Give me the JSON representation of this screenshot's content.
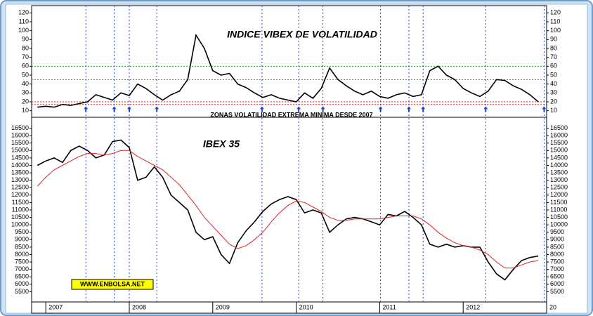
{
  "chart_data": [
    {
      "type": "line",
      "title": "INDICE VIBEX DE VOLATILIDAD",
      "annotation": "ZONAS VOLATILIDAD EXTREMA MINIMA DESDE 2007",
      "x": [
        2006.9,
        2007.0,
        2007.1,
        2007.2,
        2007.3,
        2007.4,
        2007.5,
        2007.6,
        2007.7,
        2007.8,
        2007.9,
        2008.0,
        2008.1,
        2008.2,
        2008.3,
        2008.4,
        2008.5,
        2008.6,
        2008.7,
        2008.8,
        2008.9,
        2009.0,
        2009.1,
        2009.2,
        2009.3,
        2009.4,
        2009.5,
        2009.6,
        2009.7,
        2009.8,
        2009.9,
        2010.0,
        2010.1,
        2010.2,
        2010.3,
        2010.4,
        2010.5,
        2010.6,
        2010.7,
        2010.8,
        2010.9,
        2011.0,
        2011.1,
        2011.2,
        2011.3,
        2011.4,
        2011.5,
        2011.6,
        2011.7,
        2011.8,
        2011.9,
        2012.0,
        2012.1,
        2012.2,
        2012.3,
        2012.4,
        2012.5,
        2012.6,
        2012.7,
        2012.8,
        2012.9
      ],
      "series": [
        {
          "color": "#000000",
          "values": [
            14,
            15,
            14,
            17,
            16,
            18,
            20,
            28,
            25,
            22,
            30,
            27,
            40,
            35,
            28,
            22,
            28,
            32,
            45,
            95,
            80,
            55,
            50,
            52,
            40,
            36,
            30,
            25,
            28,
            24,
            22,
            20,
            30,
            24,
            35,
            58,
            45,
            38,
            32,
            28,
            32,
            26,
            24,
            28,
            30,
            26,
            28,
            55,
            60,
            50,
            45,
            35,
            30,
            26,
            32,
            45,
            44,
            38,
            34,
            28,
            20
          ]
        }
      ],
      "xlim": [
        2006.83,
        2013.0
      ],
      "ylim": [
        5,
        125
      ],
      "yticks": [
        10,
        20,
        30,
        40,
        50,
        60,
        70,
        80,
        90,
        100,
        110,
        120
      ],
      "reference_lines": [
        {
          "value": 60,
          "color": "#22aa22"
        },
        {
          "value": 45,
          "color": "#22aa22"
        },
        {
          "value": 20,
          "color": "#dd2222"
        },
        {
          "value": 17,
          "color": "#dd2222"
        }
      ],
      "signal_dates": [
        2007.48,
        2007.82,
        2008.0,
        2008.33,
        2009.59,
        2010.03,
        2010.32,
        2011.01,
        2011.35,
        2011.52,
        2012.27,
        2012.97
      ],
      "signal_color": "#2244cc"
    },
    {
      "type": "line",
      "title": "IBEX 35",
      "annotation": "WWW.ENBOLSA.NET",
      "x": [
        2006.9,
        2007.0,
        2007.1,
        2007.2,
        2007.3,
        2007.4,
        2007.5,
        2007.6,
        2007.7,
        2007.8,
        2007.9,
        2008.0,
        2008.1,
        2008.2,
        2008.3,
        2008.4,
        2008.5,
        2008.6,
        2008.7,
        2008.8,
        2008.9,
        2009.0,
        2009.1,
        2009.2,
        2009.3,
        2009.4,
        2009.5,
        2009.6,
        2009.7,
        2009.8,
        2009.9,
        2010.0,
        2010.1,
        2010.2,
        2010.3,
        2010.4,
        2010.5,
        2010.6,
        2010.7,
        2010.8,
        2010.9,
        2011.0,
        2011.1,
        2011.2,
        2011.3,
        2011.4,
        2011.5,
        2011.6,
        2011.7,
        2011.8,
        2011.9,
        2012.0,
        2012.1,
        2012.2,
        2012.3,
        2012.4,
        2012.5,
        2012.6,
        2012.7,
        2012.8,
        2012.9
      ],
      "series": [
        {
          "color": "#000000",
          "values": [
            14000,
            14300,
            14500,
            14200,
            15000,
            15300,
            15000,
            14500,
            14700,
            15600,
            15700,
            15200,
            13000,
            13200,
            13900,
            13200,
            12000,
            11500,
            11000,
            9500,
            9000,
            9200,
            8000,
            7400,
            8800,
            9600,
            10200,
            10900,
            11400,
            11700,
            11900,
            11700,
            10800,
            11000,
            10800,
            9500,
            10000,
            10400,
            10500,
            10400,
            10200,
            10000,
            10700,
            10600,
            10900,
            10500,
            10000,
            8700,
            8500,
            8700,
            8500,
            8600,
            8500,
            8500,
            7500,
            6700,
            6300,
            7000,
            7600,
            7800,
            7900
          ]
        },
        {
          "color": "#dd2222",
          "values": [
            12600,
            13200,
            13700,
            14000,
            14300,
            14600,
            14800,
            14800,
            14700,
            14800,
            15000,
            15000,
            14600,
            14300,
            14000,
            13700,
            13200,
            12700,
            12000,
            11300,
            10500,
            9900,
            9300,
            8700,
            8400,
            8600,
            9000,
            9500,
            10200,
            10800,
            11300,
            11600,
            11500,
            11200,
            10900,
            10500,
            10300,
            10300,
            10400,
            10400,
            10400,
            10400,
            10500,
            10600,
            10600,
            10600,
            10400,
            10000,
            9500,
            9100,
            8800,
            8600,
            8500,
            8300,
            8000,
            7500,
            7100,
            7100,
            7300,
            7500,
            7600
          ]
        }
      ],
      "xlim": [
        2006.83,
        2013.0
      ],
      "ylim": [
        5000,
        17000
      ],
      "yticks": [
        5500,
        6000,
        6500,
        7000,
        7500,
        8000,
        8500,
        9000,
        9500,
        10000,
        10500,
        11000,
        11500,
        12000,
        12500,
        13000,
        13500,
        14000,
        14500,
        15000,
        15500,
        16000,
        16500
      ],
      "xticks": [
        2007,
        2008,
        2009,
        2010,
        2011,
        2012,
        {
          "value": 2013,
          "label": "20"
        }
      ]
    }
  ]
}
